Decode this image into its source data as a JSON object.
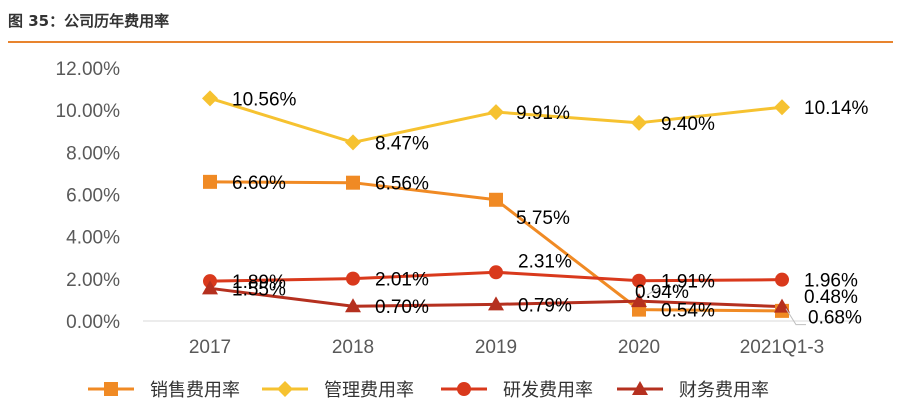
{
  "figure": {
    "title": "图 35：公司历年费用率"
  },
  "colors": {
    "销售费用率": "#f08a24",
    "管理费用率": "#f6c230",
    "研发费用率": "#d9391c",
    "财务费用率": "#b5301f",
    "accent_rule": "#e8842e"
  },
  "chart_data": {
    "type": "line",
    "x": [
      "2017",
      "2018",
      "2019",
      "2020",
      "2021Q1-3"
    ],
    "ylim": [
      0,
      12
    ],
    "yticks": [
      "0.00%",
      "2.00%",
      "4.00%",
      "6.00%",
      "8.00%",
      "10.00%",
      "12.00%"
    ],
    "grid": false,
    "legend": "bottom",
    "series": [
      {
        "name": "销售费用率",
        "marker": "square",
        "values": [
          6.6,
          6.56,
          5.75,
          0.54,
          0.48
        ],
        "labels": [
          "6.60%",
          "6.56%",
          "5.75%",
          "0.54%",
          "0.48%"
        ]
      },
      {
        "name": "管理费用率",
        "marker": "diamond",
        "values": [
          10.56,
          8.47,
          9.91,
          9.4,
          10.14
        ],
        "labels": [
          "10.56%",
          "8.47%",
          "9.91%",
          "9.40%",
          "10.14%"
        ]
      },
      {
        "name": "研发费用率",
        "marker": "circle",
        "values": [
          1.89,
          2.01,
          2.31,
          1.91,
          1.96
        ],
        "labels": [
          "1.89%",
          "2.01%",
          "2.31%",
          "1.91%",
          "1.96%"
        ]
      },
      {
        "name": "财务费用率",
        "marker": "triangle",
        "values": [
          1.55,
          0.7,
          0.79,
          0.94,
          0.68
        ],
        "labels": [
          "1.55%",
          "0.70%",
          "0.79%",
          "0.94%",
          "0.68%"
        ]
      }
    ]
  }
}
